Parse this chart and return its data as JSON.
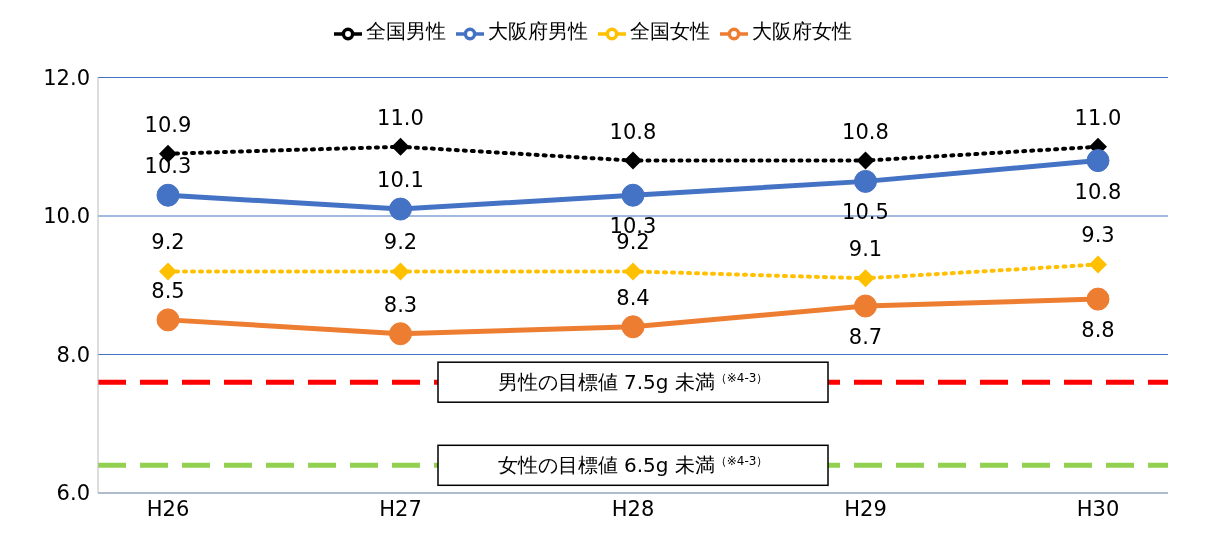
{
  "chart_data": {
    "type": "line",
    "categories": [
      "H26",
      "H27",
      "H28",
      "H29",
      "H30"
    ],
    "series": [
      {
        "name": "全国男性",
        "color": "#000000",
        "values": [
          10.9,
          11.0,
          10.8,
          10.8,
          11.0
        ],
        "value_labels": [
          "10.9",
          "11.0",
          "10.8",
          "10.8",
          "11.0"
        ],
        "marker": "diamond",
        "line_style": "dotted"
      },
      {
        "name": "大阪府男性",
        "color": "#4472c4",
        "values": [
          10.3,
          10.1,
          10.3,
          10.5,
          10.8
        ],
        "value_labels": [
          "10.3",
          "10.1",
          "10.3",
          "10.5",
          "10.8"
        ],
        "marker": "circle",
        "line_style": "solid"
      },
      {
        "name": "全国女性",
        "color": "#ffc000",
        "values": [
          9.2,
          9.2,
          9.2,
          9.1,
          9.3
        ],
        "value_labels": [
          "9.2",
          "9.2",
          "9.2",
          "9.1",
          "9.3"
        ],
        "marker": "diamond",
        "line_style": "dotted"
      },
      {
        "name": "大阪府女性",
        "color": "#ed7d31",
        "values": [
          8.5,
          8.3,
          8.4,
          8.7,
          8.8
        ],
        "value_labels": [
          "8.5",
          "8.3",
          "8.4",
          "8.7",
          "8.8"
        ],
        "marker": "circle",
        "line_style": "solid"
      }
    ],
    "ylim": [
      6,
      12
    ],
    "yticks": [
      {
        "value": 6,
        "label": "6.0"
      },
      {
        "value": 8,
        "label": "8.0"
      },
      {
        "value": 10,
        "label": "10.0"
      },
      {
        "value": 12,
        "label": "12.0"
      }
    ],
    "grid": "y",
    "legend": "top",
    "ref_lines": [
      {
        "axis": "y",
        "value": 7.6,
        "label": "男性の目標値 7.5g 未満$^{（※4-3）}$",
        "color": "#ff0000",
        "line_style": "dashed"
      },
      {
        "axis": "y",
        "value": 6.4,
        "label": "女性の目標値 6.5g 未満$^{（※4-3）}$",
        "color": "#92d050",
        "line_style": "dashed"
      }
    ]
  }
}
